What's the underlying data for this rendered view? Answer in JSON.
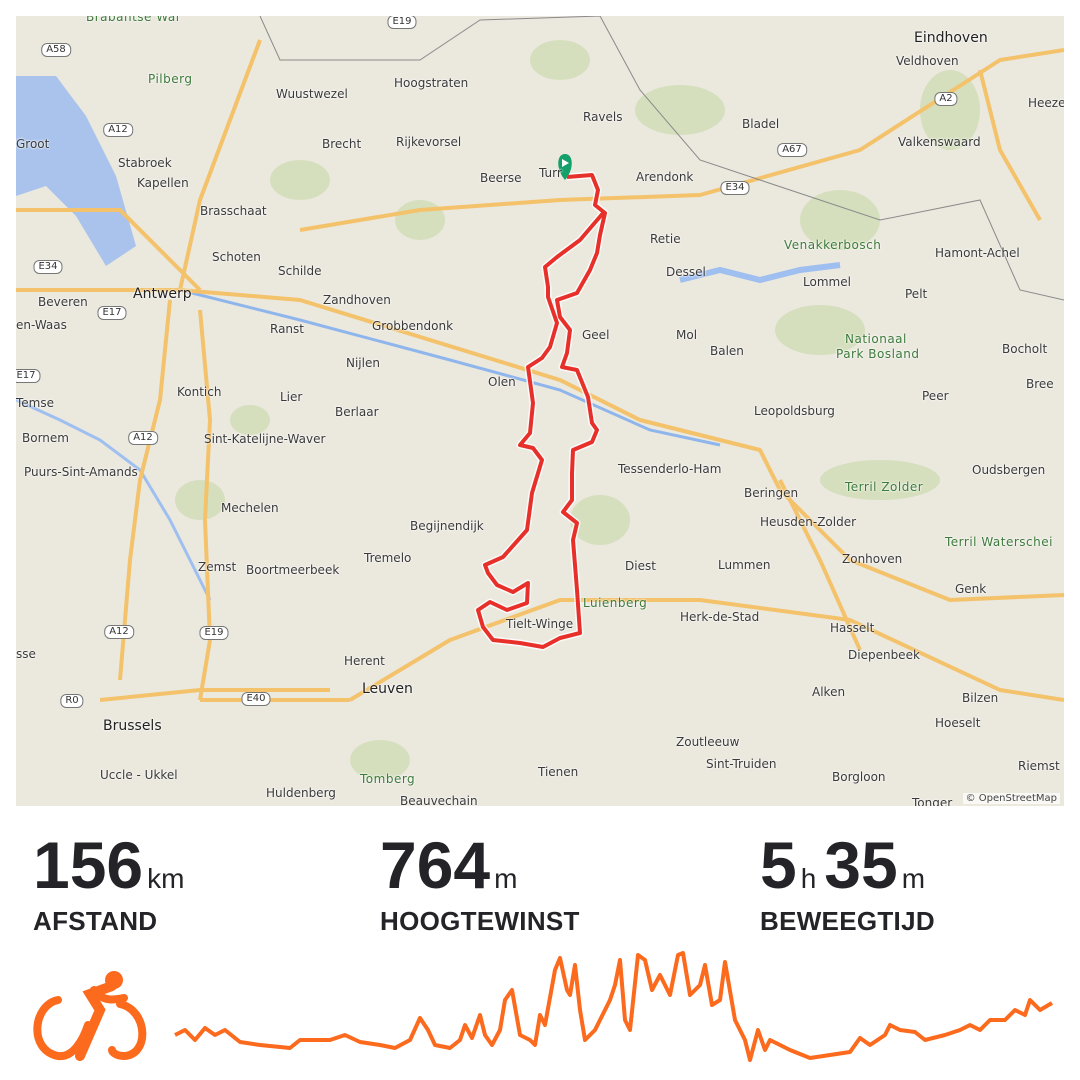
{
  "map": {
    "attribution": "© OpenStreetMap",
    "route_color": "#e8302b",
    "start_marker_color": "#14a06a",
    "labels": [
      {
        "id": "eindhoven",
        "text": "Eindhoven",
        "big": true
      },
      {
        "id": "veldhoven",
        "text": "Veldhoven"
      },
      {
        "id": "heeze",
        "text": "Heeze"
      },
      {
        "id": "pilberg",
        "text": "Pilberg",
        "park": true
      },
      {
        "id": "wuustwezel",
        "text": "Wuustwezel"
      },
      {
        "id": "hoogstraten",
        "text": "Hoogstraten"
      },
      {
        "id": "ravels",
        "text": "Ravels"
      },
      {
        "id": "bladel",
        "text": "Bladel"
      },
      {
        "id": "valkenswaard",
        "text": "Valkenswaard"
      },
      {
        "id": "stabroek",
        "text": "Stabroek"
      },
      {
        "id": "brecht",
        "text": "Brecht"
      },
      {
        "id": "rijkevorsel",
        "text": "Rijkevorsel"
      },
      {
        "id": "beerse",
        "text": "Beerse"
      },
      {
        "id": "turnhout",
        "text": "Turr"
      },
      {
        "id": "arendonk",
        "text": "Arendonk"
      },
      {
        "id": "kapellen",
        "text": "Kapellen"
      },
      {
        "id": "brasschaat",
        "text": "Brasschaat"
      },
      {
        "id": "retie",
        "text": "Retie"
      },
      {
        "id": "venakkerbosch",
        "text": "Venakkerbosch",
        "park": true
      },
      {
        "id": "hamont",
        "text": "Hamont-Achel"
      },
      {
        "id": "schoten",
        "text": "Schoten"
      },
      {
        "id": "schilde",
        "text": "Schilde"
      },
      {
        "id": "dessel",
        "text": "Dessel"
      },
      {
        "id": "lommel",
        "text": "Lommel"
      },
      {
        "id": "pelt",
        "text": "Pelt"
      },
      {
        "id": "beveren",
        "text": "Beveren"
      },
      {
        "id": "antwerp",
        "text": "Antwerp",
        "big": true
      },
      {
        "id": "zandhoven",
        "text": "Zandhoven"
      },
      {
        "id": "waas",
        "text": "en-Waas"
      },
      {
        "id": "ranst",
        "text": "Ranst"
      },
      {
        "id": "grobbendonk",
        "text": "Grobbendonk"
      },
      {
        "id": "nationaal",
        "text": "Nationaal",
        "park": true
      },
      {
        "id": "parkbosland",
        "text": "Park Bosland",
        "park": true
      },
      {
        "id": "mol",
        "text": "Mol"
      },
      {
        "id": "geel",
        "text": "Geel"
      },
      {
        "id": "balen",
        "text": "Balen"
      },
      {
        "id": "bocholt",
        "text": "Bocholt"
      },
      {
        "id": "nijlen",
        "text": "Nijlen"
      },
      {
        "id": "olen",
        "text": "Olen"
      },
      {
        "id": "bree",
        "text": "Bree"
      },
      {
        "id": "kontich",
        "text": "Kontich"
      },
      {
        "id": "lier",
        "text": "Lier"
      },
      {
        "id": "berlaar",
        "text": "Berlaar"
      },
      {
        "id": "leopoldsburg",
        "text": "Leopoldsburg"
      },
      {
        "id": "peer",
        "text": "Peer"
      },
      {
        "id": "temse",
        "text": "Temse"
      },
      {
        "id": "bornem",
        "text": "Bornem"
      },
      {
        "id": "skw",
        "text": "Sint-Katelijne-Waver"
      },
      {
        "id": "tessenderlo",
        "text": "Tessenderlo-Ham"
      },
      {
        "id": "oudsbergen",
        "text": "Oudsbergen"
      },
      {
        "id": "puurs",
        "text": "Puurs-Sint-Amands"
      },
      {
        "id": "terrilzolder",
        "text": "Terril Zolder",
        "park": true
      },
      {
        "id": "beringen",
        "text": "Beringen"
      },
      {
        "id": "mechelen",
        "text": "Mechelen"
      },
      {
        "id": "heusden",
        "text": "Heusden-Zolder"
      },
      {
        "id": "begijnendijk",
        "text": "Begijnendijk"
      },
      {
        "id": "terrilwaterschei",
        "text": "Terril Waterschei",
        "park": true
      },
      {
        "id": "tremelo",
        "text": "Tremelo"
      },
      {
        "id": "zonhoven",
        "text": "Zonhoven"
      },
      {
        "id": "zemst",
        "text": "Zemst"
      },
      {
        "id": "boortmeerbeek",
        "text": "Boortmeerbeek"
      },
      {
        "id": "diest",
        "text": "Diest"
      },
      {
        "id": "lummen",
        "text": "Lummen"
      },
      {
        "id": "genk",
        "text": "Genk"
      },
      {
        "id": "luienberg",
        "text": "Luienberg",
        "park": true
      },
      {
        "id": "tieltwinge",
        "text": "Tielt-Winge"
      },
      {
        "id": "herk",
        "text": "Herk-de-Stad"
      },
      {
        "id": "hasselt",
        "text": "Hasselt"
      },
      {
        "id": "asse",
        "text": "sse"
      },
      {
        "id": "diepenbeek",
        "text": "Diepenbeek"
      },
      {
        "id": "herent",
        "text": "Herent"
      },
      {
        "id": "leuven",
        "text": "Leuven",
        "big": true
      },
      {
        "id": "alken",
        "text": "Alken"
      },
      {
        "id": "bilzen",
        "text": "Bilzen"
      },
      {
        "id": "brussels",
        "text": "Brussels",
        "big": true
      },
      {
        "id": "hoeselt",
        "text": "Hoeselt"
      },
      {
        "id": "zoutleeuw",
        "text": "Zoutleeuw"
      },
      {
        "id": "uccle",
        "text": "Uccle - Ukkel"
      },
      {
        "id": "tomberg",
        "text": "Tomberg",
        "park": true
      },
      {
        "id": "sinttruiden",
        "text": "Sint-Truiden"
      },
      {
        "id": "tienen",
        "text": "Tienen"
      },
      {
        "id": "borgloon",
        "text": "Borgloon"
      },
      {
        "id": "riemst",
        "text": "Riemst"
      },
      {
        "id": "huldenberg",
        "text": "Huldenberg"
      },
      {
        "id": "beauvechain",
        "text": "Beauvechain"
      },
      {
        "id": "tongeren",
        "text": "Tonger"
      },
      {
        "id": "groot",
        "text": "Groot"
      },
      {
        "id": "brabantse",
        "text": "Brabantse Wal",
        "park": true
      }
    ],
    "road_shields": [
      "A58",
      "A12",
      "E34",
      "E17",
      "E19",
      "A2",
      "A67",
      "E34",
      "A12",
      "A12",
      "E19",
      "E17",
      "R0",
      "E40"
    ]
  },
  "stats": [
    {
      "value": "156",
      "unit": "km",
      "label": "AFSTAND"
    },
    {
      "value": "764",
      "unit": "m",
      "label": "HOOGTEWINST"
    },
    {
      "value": "5",
      "unit": "h",
      "value2": "35",
      "unit2": "m",
      "label": "BEWEEGTIJD"
    }
  ],
  "activity": {
    "type_icon": "cycling-icon",
    "accent_color": "#fc6a1e"
  }
}
